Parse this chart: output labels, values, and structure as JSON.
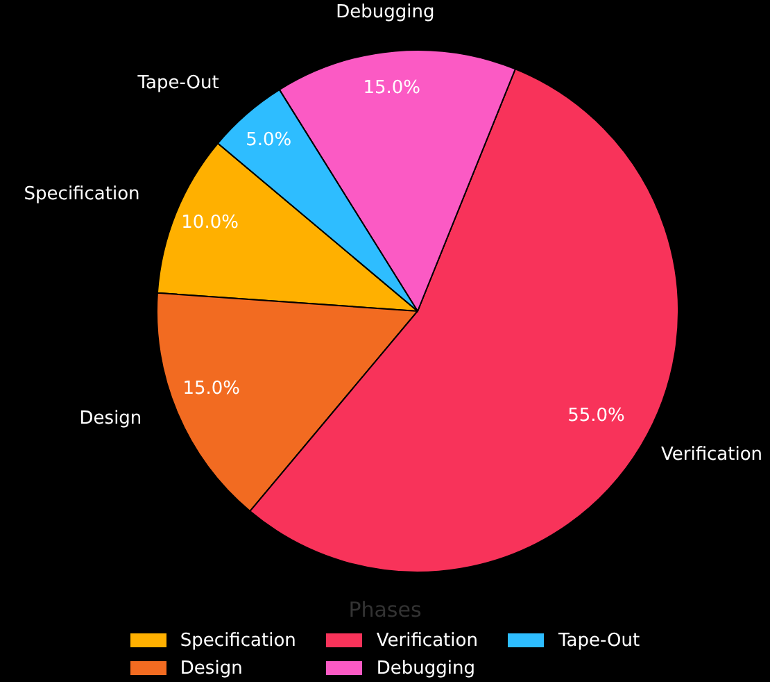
{
  "chart_data": {
    "type": "pie",
    "legend_title": "Phases",
    "legend": "bottom",
    "categories": [
      "Specification",
      "Design",
      "Verification",
      "Debugging",
      "Tape-Out"
    ],
    "values": [
      10,
      15,
      55,
      15,
      5
    ],
    "value_labels": [
      "10.0%",
      "15.0%",
      "55.0%",
      "15.0%",
      "5.0%"
    ],
    "colors": [
      "#ffb000",
      "#f26b21",
      "#f8335a",
      "#fb5ac4",
      "#2ebdff"
    ]
  }
}
